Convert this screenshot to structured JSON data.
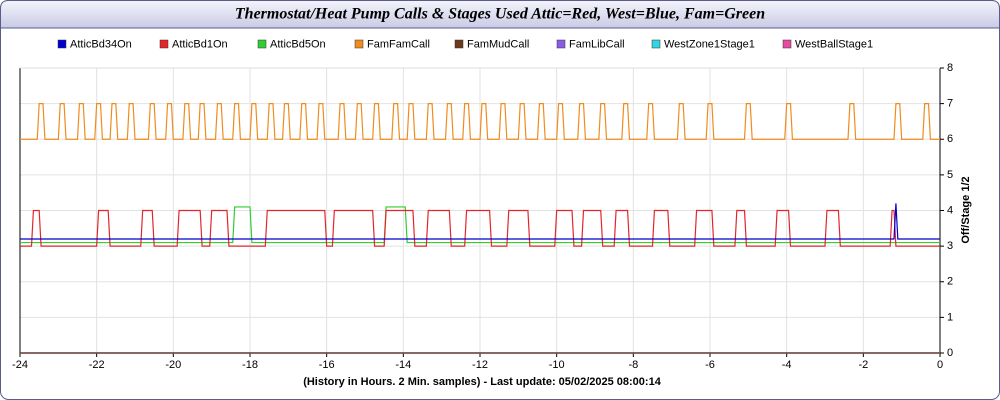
{
  "chart_data": {
    "type": "line",
    "title": "Thermostat/Heat Pump Calls & Stages Used Attic=Red, West=Blue, Fam=Green",
    "xlabel": "(History in Hours. 2 Min. samples) - Last update: 05/02/2025 08:00:14",
    "ylabel": "Off/Stage 1/2",
    "xlim": [
      -24,
      0
    ],
    "xticks": [
      -24,
      -22,
      -20,
      -18,
      -16,
      -14,
      -12,
      -10,
      -8,
      -6,
      -4,
      -2,
      0
    ],
    "ylim": [
      0,
      8
    ],
    "yticks": [
      0,
      1,
      2,
      3,
      4,
      5,
      6,
      7,
      8
    ],
    "grid": true,
    "legend": "top",
    "series": [
      {
        "name": "AtticBd34On",
        "color": "#0000cc",
        "x": [
          -24,
          -1.2,
          -1.15,
          -1.1,
          0
        ],
        "values": [
          3.2,
          3.2,
          4.2,
          3.2,
          3.2
        ]
      },
      {
        "name": "AtticBd1On",
        "color": "#e3262a",
        "x": [
          -24,
          -23.7,
          -23.65,
          -23.5,
          -23.45,
          -22.0,
          -21.95,
          -21.7,
          -21.65,
          -20.85,
          -20.8,
          -20.55,
          -20.5,
          -19.9,
          -19.85,
          -19.3,
          -19.25,
          -19.05,
          -19.0,
          -18.6,
          -18.55,
          -17.6,
          -17.55,
          -16.05,
          -16.0,
          -15.85,
          -15.8,
          -14.8,
          -14.75,
          -14.5,
          -14.45,
          -13.75,
          -13.7,
          -13.4,
          -13.35,
          -12.8,
          -12.75,
          -12.4,
          -12.35,
          -11.75,
          -11.7,
          -11.3,
          -11.25,
          -10.75,
          -10.7,
          -10.05,
          -10.0,
          -9.6,
          -9.55,
          -9.35,
          -9.3,
          -8.85,
          -8.8,
          -8.5,
          -8.45,
          -8.15,
          -8.1,
          -7.5,
          -7.45,
          -7.1,
          -7.05,
          -6.4,
          -6.35,
          -5.95,
          -5.9,
          -5.35,
          -5.3,
          -5.1,
          -5.05,
          -4.3,
          -4.25,
          -3.95,
          -3.9,
          -3.0,
          -2.95,
          -2.65,
          -2.6,
          -1.3,
          -1.25,
          -1.2,
          -1.15,
          0
        ],
        "values": [
          3,
          3,
          4,
          4,
          3,
          3,
          4,
          4,
          3,
          3,
          4,
          4,
          3,
          3,
          4,
          4,
          3,
          3,
          4,
          4,
          3,
          3,
          4,
          4,
          3,
          3,
          4,
          4,
          3,
          3,
          4,
          4,
          3,
          3,
          4,
          4,
          3,
          3,
          4,
          4,
          3,
          3,
          4,
          4,
          3,
          3,
          4,
          4,
          3,
          3,
          4,
          4,
          3,
          3,
          4,
          4,
          3,
          3,
          4,
          4,
          3,
          3,
          4,
          4,
          3,
          3,
          4,
          4,
          3,
          3,
          4,
          4,
          3,
          3,
          4,
          4,
          3,
          3,
          4,
          4,
          3,
          3
        ]
      },
      {
        "name": "AtticBd5On",
        "color": "#33cc33",
        "x": [
          -24,
          -18.45,
          -18.4,
          -18.0,
          -17.95,
          -14.5,
          -14.45,
          -13.95,
          -13.9,
          0
        ],
        "values": [
          3.1,
          3.1,
          4.1,
          4.1,
          3.1,
          3.1,
          4.1,
          4.1,
          3.1,
          3.1
        ]
      },
      {
        "name": "FamFamCall",
        "color": "#f08c1e",
        "x": [
          -24,
          -23.55,
          -23.5,
          -23.4,
          -23.35,
          -23.0,
          -22.95,
          -22.85,
          -22.8,
          -22.5,
          -22.45,
          -22.35,
          -22.3,
          -22.05,
          -22.0,
          -21.9,
          -21.85,
          -21.65,
          -21.6,
          -21.5,
          -21.45,
          -21.2,
          -21.15,
          -21.05,
          -21.0,
          -20.65,
          -20.6,
          -20.5,
          -20.45,
          -20.2,
          -20.15,
          -20.05,
          -20.0,
          -19.75,
          -19.7,
          -19.6,
          -19.55,
          -19.35,
          -19.3,
          -19.2,
          -19.15,
          -18.9,
          -18.85,
          -18.75,
          -18.7,
          -18.45,
          -18.4,
          -18.3,
          -18.25,
          -18.0,
          -17.95,
          -17.85,
          -17.8,
          -17.55,
          -17.5,
          -17.4,
          -17.35,
          -17.15,
          -17.1,
          -17.0,
          -16.95,
          -16.7,
          -16.65,
          -16.55,
          -16.5,
          -16.25,
          -16.2,
          -16.1,
          -16.05,
          -15.7,
          -15.65,
          -15.55,
          -15.5,
          -15.25,
          -15.2,
          -15.1,
          -15.05,
          -14.8,
          -14.75,
          -14.65,
          -14.6,
          -14.3,
          -14.25,
          -14.15,
          -14.1,
          -13.9,
          -13.85,
          -13.75,
          -13.7,
          -13.4,
          -13.35,
          -13.25,
          -13.2,
          -12.9,
          -12.85,
          -12.75,
          -12.7,
          -12.45,
          -12.4,
          -12.3,
          -12.25,
          -12.0,
          -11.95,
          -11.85,
          -11.8,
          -11.5,
          -11.45,
          -11.35,
          -11.3,
          -11.0,
          -10.95,
          -10.85,
          -10.8,
          -10.5,
          -10.45,
          -10.35,
          -10.3,
          -10.0,
          -9.95,
          -9.85,
          -9.8,
          -9.45,
          -9.4,
          -9.3,
          -9.25,
          -8.9,
          -8.85,
          -8.75,
          -8.7,
          -8.3,
          -8.25,
          -8.15,
          -8.1,
          -7.65,
          -7.6,
          -7.5,
          -7.45,
          -6.85,
          -6.8,
          -6.7,
          -6.65,
          -6.1,
          -6.05,
          -5.95,
          -5.9,
          -5.1,
          -5.05,
          -4.95,
          -4.9,
          -4.05,
          -4.0,
          -3.9,
          -3.85,
          -2.4,
          -2.35,
          -2.25,
          -2.2,
          -1.2,
          -1.15,
          -1.05,
          -1.0,
          -0.45,
          -0.4,
          -0.3,
          -0.25,
          0
        ],
        "values": [
          6,
          6,
          7,
          7,
          6,
          6,
          7,
          7,
          6,
          6,
          7,
          7,
          6,
          6,
          7,
          7,
          6,
          6,
          7,
          7,
          6,
          6,
          7,
          7,
          6,
          6,
          7,
          7,
          6,
          6,
          7,
          7,
          6,
          6,
          7,
          7,
          6,
          6,
          7,
          7,
          6,
          6,
          7,
          7,
          6,
          6,
          7,
          7,
          6,
          6,
          7,
          7,
          6,
          6,
          7,
          7,
          6,
          6,
          7,
          7,
          6,
          6,
          7,
          7,
          6,
          6,
          7,
          7,
          6,
          6,
          7,
          7,
          6,
          6,
          7,
          7,
          6,
          6,
          7,
          7,
          6,
          6,
          7,
          7,
          6,
          6,
          7,
          7,
          6,
          6,
          7,
          7,
          6,
          6,
          7,
          7,
          6,
          6,
          7,
          7,
          6,
          6,
          7,
          7,
          6,
          6,
          7,
          7,
          6,
          6,
          7,
          7,
          6,
          6,
          7,
          7,
          6,
          6,
          7,
          7,
          6,
          6,
          7,
          7,
          6,
          6,
          7,
          7,
          6,
          6,
          7,
          7,
          6,
          6,
          7,
          7,
          6,
          6,
          7,
          7,
          6,
          6,
          7,
          7,
          6,
          6,
          7,
          7,
          6,
          6,
          7,
          7,
          6,
          6,
          7,
          7,
          6,
          6,
          7,
          7,
          6,
          6,
          7,
          7,
          6,
          6
        ]
      },
      {
        "name": "FamMudCall",
        "color": "#6b3a1a",
        "x": [
          -24,
          0
        ],
        "values": [
          0,
          0
        ]
      },
      {
        "name": "FamLibCall",
        "color": "#8a5ce6",
        "x": [
          -24,
          0
        ],
        "values": [
          0,
          0
        ]
      },
      {
        "name": "WestZone1Stage1",
        "color": "#33d6e0",
        "x": [
          -24,
          0
        ],
        "values": [
          0,
          0
        ]
      },
      {
        "name": "WestBallStage1",
        "color": "#e64da0",
        "x": [
          -24,
          0
        ],
        "values": [
          0,
          0
        ]
      }
    ]
  }
}
